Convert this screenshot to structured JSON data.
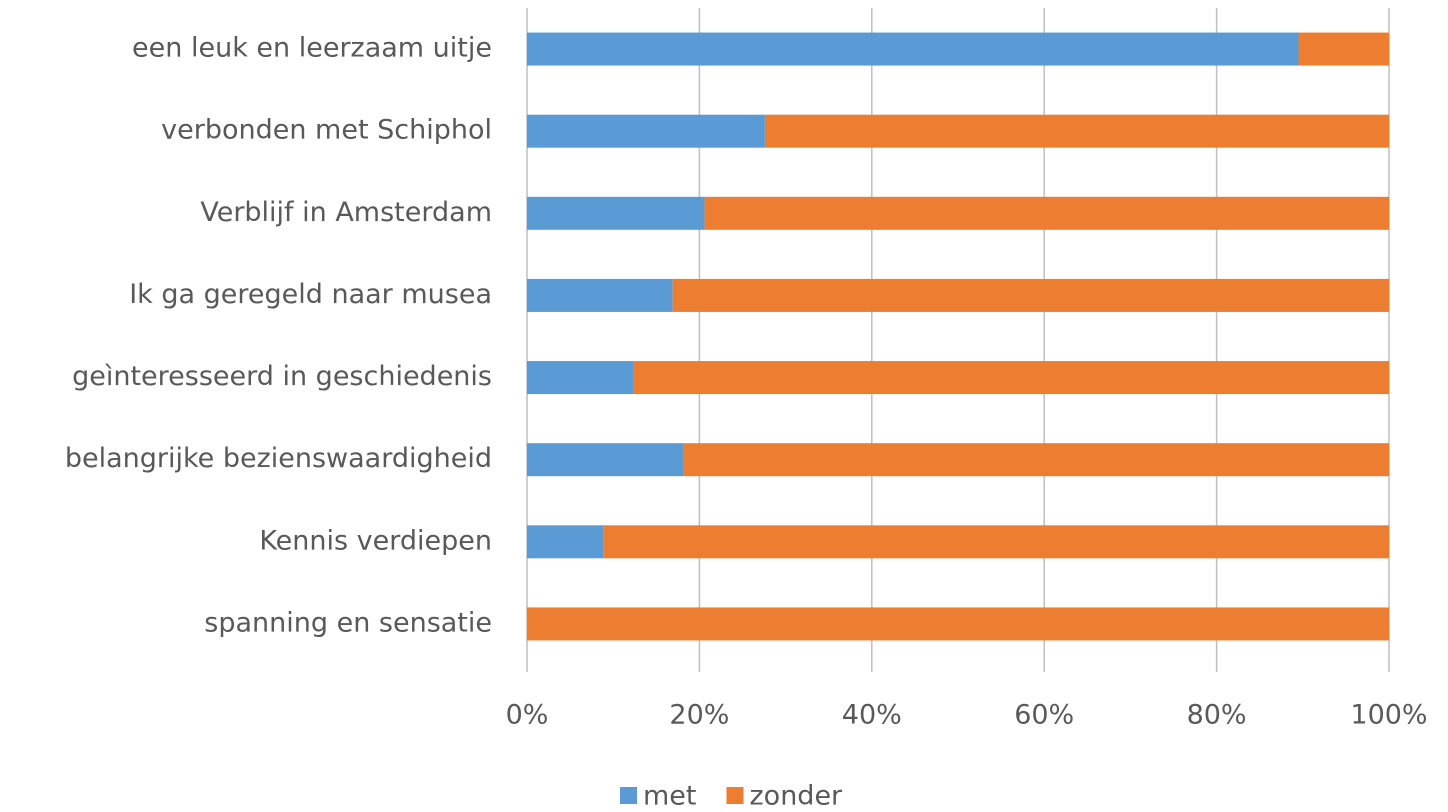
{
  "chart_data": {
    "type": "stacked_barh",
    "categories": [
      "een leuk en leerzaam uitje",
      "verbonden met Schiphol",
      "Verblijf in Amsterdam",
      "Ik ga geregeld naar musea",
      "geìnteresseerd in geschiedenis",
      "belangrijke bezienswaardigheid",
      "Kennis verdiepen",
      "spanning en sensatie"
    ],
    "series": [
      {
        "name": "met",
        "color": "#5b9bd5",
        "values": [
          89.5,
          27.6,
          20.6,
          16.9,
          12.4,
          18.2,
          8.9,
          0
        ]
      },
      {
        "name": "zonder",
        "color": "#ed7d31",
        "values": [
          10.5,
          72.4,
          79.4,
          83.1,
          87.6,
          81.8,
          91.1,
          100
        ]
      }
    ],
    "xlim": [
      0,
      100
    ],
    "xticks": [
      {
        "value": 0,
        "label": "0%"
      },
      {
        "value": 20,
        "label": "20%"
      },
      {
        "value": 40,
        "label": "40%"
      },
      {
        "value": 60,
        "label": "60%"
      },
      {
        "value": 80,
        "label": "80%"
      },
      {
        "value": 100,
        "label": "100%"
      }
    ],
    "grid": true,
    "legend": "bottom"
  }
}
